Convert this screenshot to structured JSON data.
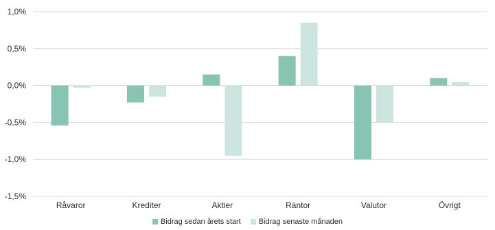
{
  "chart_data": {
    "type": "bar",
    "categories": [
      "Råvaror",
      "Krediter",
      "Aktier",
      "Räntor",
      "Valutor",
      "Övrigt"
    ],
    "series": [
      {
        "name": "Bidrag sedan årets start",
        "color": "#88c4b2",
        "values": [
          -0.54,
          -0.23,
          0.15,
          0.4,
          -1.0,
          0.1
        ]
      },
      {
        "name": "Bidrag senaste månaden",
        "color": "#cce6df",
        "values": [
          -0.03,
          -0.15,
          -0.95,
          0.85,
          -0.5,
          0.05
        ]
      }
    ],
    "ylim": [
      -1.5,
      1.0
    ],
    "yticks": [
      1.0,
      0.5,
      0.0,
      -0.5,
      -1.0,
      -1.5
    ],
    "ytick_labels": [
      "1,0%",
      "0,5%",
      "0,0%",
      "-0,5%",
      "-1,0%",
      "-1,5%"
    ],
    "grid": true,
    "legend_position": "bottom"
  }
}
